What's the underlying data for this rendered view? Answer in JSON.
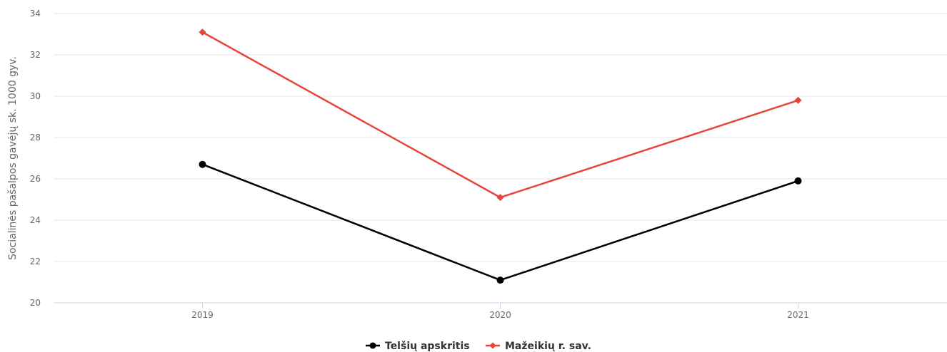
{
  "chart_data": {
    "type": "line",
    "x": [
      "2019",
      "2020",
      "2021"
    ],
    "ylabel": "Socialinės pašalpos gavėjų sk. 1000 gyv.",
    "xlabel": "",
    "ylim": [
      20,
      34
    ],
    "yticks": [
      "20",
      "22",
      "24",
      "26",
      "28",
      "30",
      "32",
      "34"
    ],
    "grid": true,
    "legend_position": "bottom-center",
    "series": [
      {
        "name": "Telšių apskritis",
        "values": [
          26.7,
          21.1,
          25.9
        ],
        "color": "#000000",
        "marker": "circle"
      },
      {
        "name": "Mažeikių r. sav.",
        "values": [
          33.1,
          25.1,
          29.8
        ],
        "color": "#e8443a",
        "marker": "diamond"
      }
    ]
  }
}
